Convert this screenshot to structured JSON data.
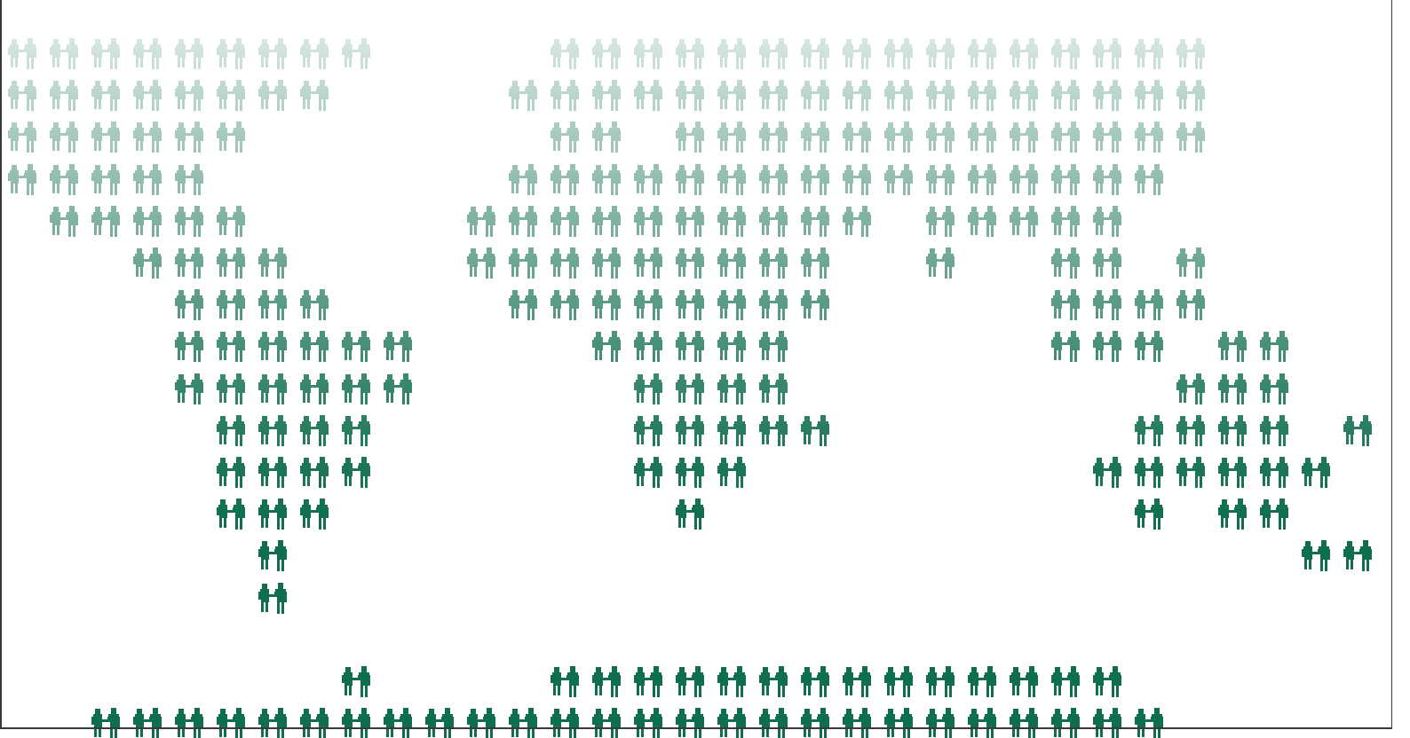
{
  "figure": {
    "icon_color": "#0f6e4b",
    "background": "#ffffff",
    "icon": "people-pair-icon",
    "rows": [
      [
        [
          0,
          8
        ],
        [
          13,
          28
        ]
      ],
      [
        [
          0,
          7
        ],
        [
          12,
          28
        ]
      ],
      [
        [
          0,
          5
        ],
        [
          13,
          14
        ],
        [
          16,
          28
        ]
      ],
      [
        [
          0,
          4
        ],
        [
          12,
          27
        ]
      ],
      [
        [
          1,
          5
        ],
        [
          11,
          20
        ],
        [
          22,
          26
        ]
      ],
      [
        [
          3,
          6
        ],
        [
          11,
          19
        ],
        [
          22,
          22
        ],
        [
          25,
          26
        ],
        [
          28,
          28
        ]
      ],
      [
        [
          4,
          7
        ],
        [
          12,
          19
        ],
        [
          25,
          28
        ]
      ],
      [
        [
          4,
          9
        ],
        [
          14,
          18
        ],
        [
          25,
          27
        ],
        [
          29,
          30
        ]
      ],
      [
        [
          4,
          9
        ],
        [
          15,
          18
        ],
        [
          28,
          30
        ]
      ],
      [
        [
          5,
          8
        ],
        [
          15,
          19
        ],
        [
          27,
          30
        ],
        [
          32,
          32
        ]
      ],
      [
        [
          5,
          8
        ],
        [
          15,
          17
        ],
        [
          26,
          31
        ]
      ],
      [
        [
          5,
          7
        ],
        [
          16,
          16
        ],
        [
          27,
          27
        ],
        [
          29,
          30
        ]
      ],
      [
        [
          6,
          6
        ],
        [
          31,
          32
        ]
      ],
      [
        [
          6,
          6
        ]
      ],
      [],
      [
        [
          8,
          8
        ],
        [
          13,
          26
        ]
      ],
      [
        [
          2,
          27
        ]
      ]
    ]
  }
}
